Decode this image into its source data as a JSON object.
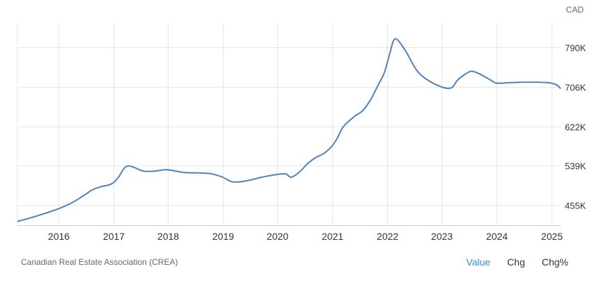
{
  "unit_label": "CAD",
  "source": "Canadian Real Estate Association (CREA)",
  "tabs": [
    {
      "label": "Value",
      "active": true
    },
    {
      "label": "Chg",
      "active": false
    },
    {
      "label": "Chg%",
      "active": false
    }
  ],
  "colors": {
    "line": "#4f81bd",
    "grid": "#e6e6e6",
    "active_tab": "#3a8fd0"
  },
  "chart_data": {
    "type": "line",
    "title": "",
    "xlabel": "",
    "ylabel": "",
    "x_ticks": [
      "2016",
      "2017",
      "2018",
      "2019",
      "2020",
      "2021",
      "2022",
      "2023",
      "2024",
      "2025"
    ],
    "y_ticks": [
      {
        "value": 455,
        "label": "455K"
      },
      {
        "value": 539,
        "label": "539K"
      },
      {
        "value": 622,
        "label": "622K"
      },
      {
        "value": 706,
        "label": "706K"
      },
      {
        "value": 790,
        "label": "790K"
      }
    ],
    "xlim": [
      2015.25,
      2025.17
    ],
    "ylim": [
      412,
      842
    ],
    "grid": true,
    "series": [
      {
        "values": [
          [
            2015.25,
            420
          ],
          [
            2015.5,
            428
          ],
          [
            2015.75,
            437
          ],
          [
            2016.0,
            447
          ],
          [
            2016.25,
            460
          ],
          [
            2016.5,
            478
          ],
          [
            2016.6,
            486
          ],
          [
            2016.75,
            493
          ],
          [
            2016.9,
            497
          ],
          [
            2017.0,
            502
          ],
          [
            2017.1,
            515
          ],
          [
            2017.2,
            533
          ],
          [
            2017.28,
            538
          ],
          [
            2017.4,
            534
          ],
          [
            2017.55,
            527
          ],
          [
            2017.75,
            527
          ],
          [
            2017.95,
            530
          ],
          [
            2018.1,
            528
          ],
          [
            2018.3,
            524
          ],
          [
            2018.6,
            523
          ],
          [
            2018.8,
            521
          ],
          [
            2019.0,
            514
          ],
          [
            2019.15,
            505
          ],
          [
            2019.3,
            504
          ],
          [
            2019.5,
            508
          ],
          [
            2019.75,
            515
          ],
          [
            2020.0,
            520
          ],
          [
            2020.15,
            521
          ],
          [
            2020.25,
            514
          ],
          [
            2020.4,
            525
          ],
          [
            2020.55,
            543
          ],
          [
            2020.7,
            556
          ],
          [
            2020.85,
            565
          ],
          [
            2021.0,
            581
          ],
          [
            2021.1,
            599
          ],
          [
            2021.2,
            621
          ],
          [
            2021.4,
            643
          ],
          [
            2021.55,
            655
          ],
          [
            2021.7,
            679
          ],
          [
            2021.85,
            713
          ],
          [
            2021.95,
            736
          ],
          [
            2022.05,
            777
          ],
          [
            2022.12,
            805
          ],
          [
            2022.2,
            805
          ],
          [
            2022.35,
            780
          ],
          [
            2022.55,
            740
          ],
          [
            2022.75,
            720
          ],
          [
            2022.95,
            708
          ],
          [
            2023.1,
            703
          ],
          [
            2023.2,
            706
          ],
          [
            2023.3,
            722
          ],
          [
            2023.5,
            738
          ],
          [
            2023.6,
            738
          ],
          [
            2023.75,
            730
          ],
          [
            2023.9,
            720
          ],
          [
            2024.0,
            714
          ],
          [
            2024.25,
            715
          ],
          [
            2024.5,
            716
          ],
          [
            2024.75,
            716
          ],
          [
            2024.95,
            715
          ],
          [
            2025.1,
            710
          ],
          [
            2025.17,
            702
          ]
        ]
      }
    ]
  }
}
